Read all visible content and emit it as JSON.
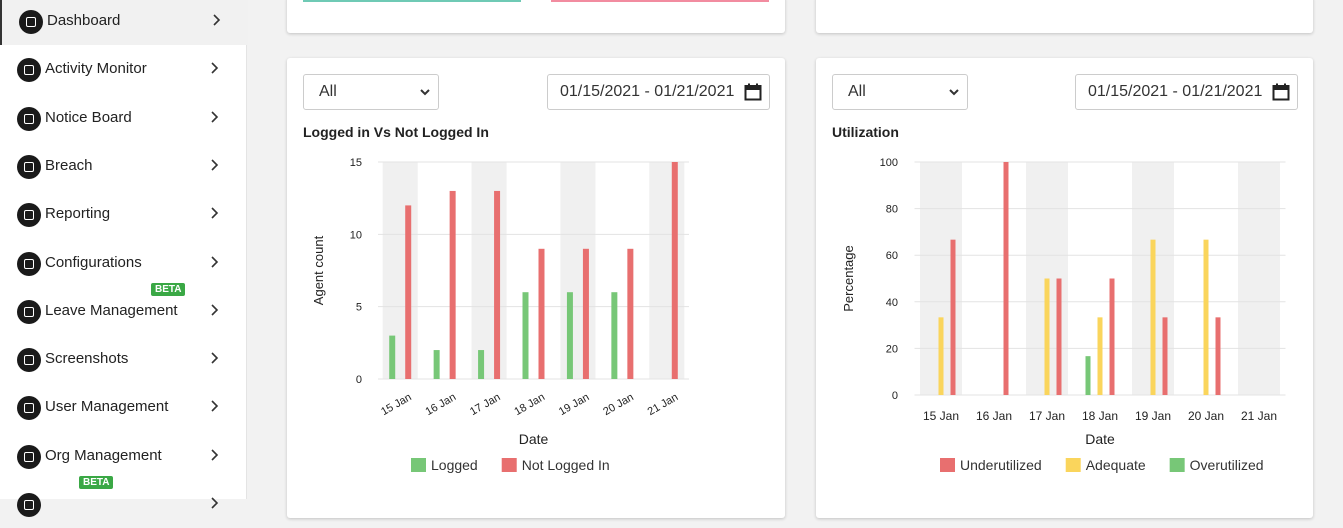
{
  "sidebar": {
    "items": [
      {
        "label": "Dashboard"
      },
      {
        "label": "Activity Monitor"
      },
      {
        "label": "Notice Board"
      },
      {
        "label": "Breach"
      },
      {
        "label": "Reporting"
      },
      {
        "label": "Configurations"
      },
      {
        "label": "Leave Management",
        "badge": "BETA"
      },
      {
        "label": "Screenshots"
      },
      {
        "label": "User Management"
      },
      {
        "label": "Org Management"
      },
      {
        "badge": "BETA"
      }
    ]
  },
  "filters": [
    {
      "select": "All",
      "date_range": "01/15/2021 - 01/21/2021"
    },
    {
      "select": "All",
      "date_range": "01/15/2021 - 01/21/2021"
    }
  ],
  "chart_data": [
    {
      "type": "bar",
      "title": "Logged in Vs Not Logged In",
      "x_label": "Date",
      "y_label": "Agent count",
      "categories": [
        "15 Jan",
        "16 Jan",
        "17 Jan",
        "18 Jan",
        "19 Jan",
        "20 Jan",
        "21 Jan"
      ],
      "series": [
        {
          "name": "Logged",
          "color": "#77c777",
          "values": [
            3,
            2,
            2,
            6,
            6,
            6,
            0
          ]
        },
        {
          "name": "Not Logged In",
          "color": "#e86f6f",
          "values": [
            12,
            13,
            13,
            9,
            9,
            9,
            15
          ]
        }
      ],
      "ylim": [
        0,
        15
      ],
      "yticks": [
        0,
        5,
        10,
        15
      ],
      "grid": true,
      "rotate_x_labels": true
    },
    {
      "type": "bar",
      "title": "Utilization",
      "x_label": "Date",
      "y_label": "Percentage",
      "categories": [
        "15 Jan",
        "16 Jan",
        "17 Jan",
        "18 Jan",
        "19 Jan",
        "20 Jan",
        "21 Jan"
      ],
      "series": [
        {
          "name": "Underutilized",
          "color": "#e86f6f",
          "values": [
            66.67,
            100,
            50,
            50,
            33.33,
            33.33,
            0
          ]
        },
        {
          "name": "Adequate",
          "color": "#fad55c",
          "values": [
            33.33,
            0,
            50,
            33.33,
            66.67,
            66.67,
            0
          ]
        },
        {
          "name": "Overutilized",
          "color": "#77c777",
          "values": [
            0,
            0,
            0,
            16.67,
            0,
            0,
            0
          ]
        }
      ],
      "bar_order": [
        2,
        1,
        0
      ],
      "ylim": [
        0,
        100
      ],
      "yticks": [
        0,
        20,
        40,
        60,
        80,
        100
      ],
      "grid": true,
      "rotate_x_labels": false
    }
  ]
}
